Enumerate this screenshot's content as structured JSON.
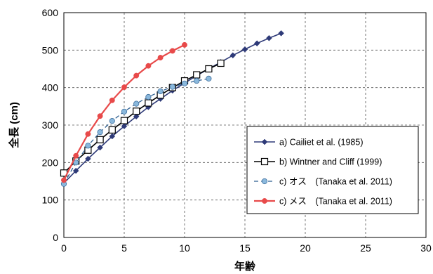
{
  "chart_data": {
    "type": "line",
    "xlabel": "年齢",
    "ylabel": "全長 (cm)",
    "xlim": [
      0,
      30
    ],
    "ylim": [
      0,
      600
    ],
    "xticks": [
      0,
      5,
      10,
      15,
      20,
      25,
      30
    ],
    "yticks": [
      0,
      100,
      200,
      300,
      400,
      500,
      600
    ],
    "grid": "dashed",
    "legend_position": "right",
    "series": [
      {
        "name": "a) Cailiet et al. (1985)",
        "marker": "diamond",
        "color": "#2e3a78",
        "line": "solid",
        "x": [
          0,
          1,
          2,
          3,
          4,
          5,
          6,
          7,
          8,
          9,
          10,
          11,
          12,
          13,
          14,
          15,
          16,
          17,
          18
        ],
        "y": [
          145,
          178,
          210,
          240,
          270,
          297,
          323,
          348,
          370,
          392,
          412,
          432,
          450,
          468,
          486,
          502,
          518,
          532,
          545
        ]
      },
      {
        "name": "b) Wintner and Cliff (1999)",
        "marker": "square",
        "color": "#000000",
        "line": "solid",
        "x": [
          0,
          1,
          2,
          3,
          4,
          5,
          6,
          7,
          8,
          9,
          10,
          11,
          12,
          13
        ],
        "y": [
          172,
          204,
          233,
          261,
          287,
          312,
          337,
          359,
          380,
          400,
          418,
          434,
          450,
          465
        ]
      },
      {
        "name": "c) オス　(Tanaka et al. 2011)",
        "marker": "circle",
        "color": "#8ab8dc",
        "line": "dashed",
        "x": [
          0,
          1,
          2,
          3,
          4,
          5,
          6,
          7,
          8,
          9,
          10,
          11,
          12
        ],
        "y": [
          143,
          200,
          245,
          281,
          311,
          336,
          357,
          375,
          390,
          402,
          411,
          418,
          424
        ]
      },
      {
        "name": "c) メス　(Tanaka et al. 2011)",
        "marker": "circle",
        "color": "#e84a4a",
        "line": "solid",
        "x": [
          0,
          1,
          2,
          3,
          4,
          5,
          6,
          7,
          8,
          9,
          10
        ],
        "y": [
          153,
          218,
          276,
          324,
          366,
          401,
          432,
          458,
          480,
          498,
          514
        ]
      }
    ]
  }
}
